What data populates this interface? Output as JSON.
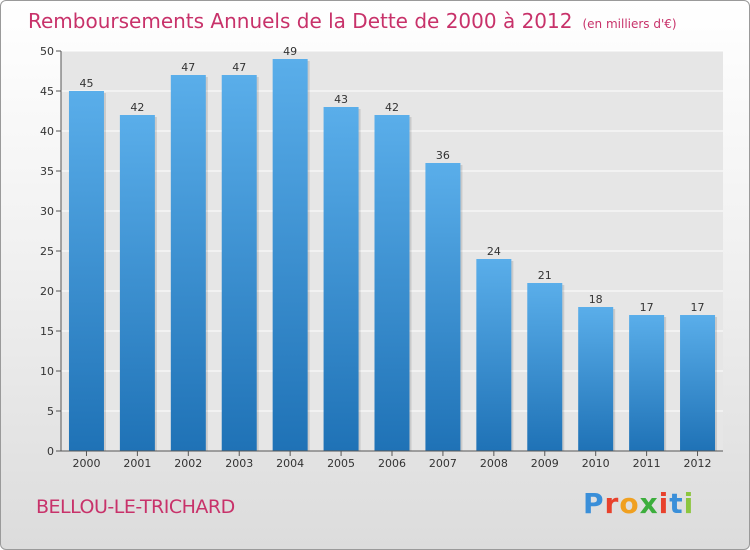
{
  "header": {
    "title": "Remboursements Annuels de la Dette de 2000 à 2012",
    "unit": "(en milliers d'€)"
  },
  "footer": {
    "commune": "BELLOU-LE-TRICHARD",
    "logo_letters": [
      "P",
      "r",
      "o",
      "x",
      "i",
      "t",
      "i"
    ],
    "logo_colors": [
      "#3a8fd9",
      "#e8412c",
      "#f0a020",
      "#3cae3c",
      "#e8412c",
      "#3a8fd9",
      "#8cc63f"
    ]
  },
  "colors": {
    "accent": "#c8326a",
    "bar_top": "#5aaeea",
    "bar_bottom": "#1f72b6",
    "axis_text": "#333333"
  },
  "chart_data": {
    "type": "bar",
    "categories": [
      "2000",
      "2001",
      "2002",
      "2003",
      "2004",
      "2005",
      "2006",
      "2007",
      "2008",
      "2009",
      "2010",
      "2011",
      "2012"
    ],
    "values": [
      45,
      42,
      47,
      47,
      49,
      43,
      42,
      36,
      24,
      21,
      18,
      17,
      17
    ],
    "ylim": [
      0,
      50
    ],
    "yticks": [
      0,
      5,
      10,
      15,
      20,
      25,
      30,
      35,
      40,
      45,
      50
    ],
    "grid": true,
    "legend": "none"
  }
}
